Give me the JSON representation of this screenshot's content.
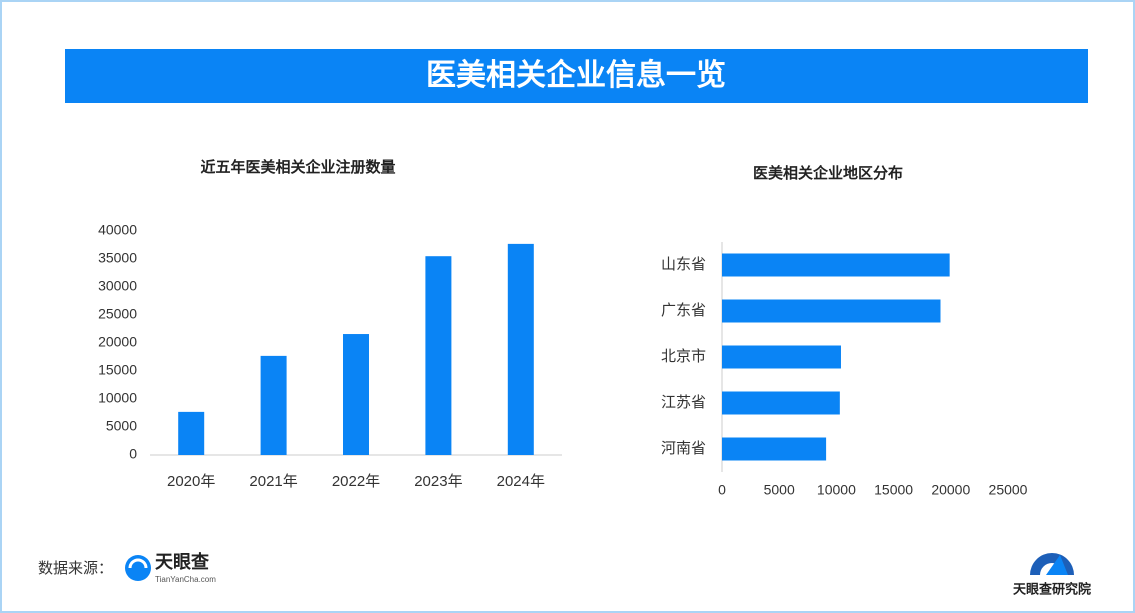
{
  "header": {
    "title": "医美相关企业信息一览"
  },
  "chart_data": [
    {
      "type": "bar",
      "title": "近五年医美相关企业注册数量",
      "categories": [
        "2020年",
        "2021年",
        "2022年",
        "2023年",
        "2024年"
      ],
      "values": [
        7700,
        17700,
        21600,
        35500,
        37700
      ],
      "color": "#0a84f5",
      "ylim": [
        0,
        40000
      ],
      "yticks": [
        0,
        5000,
        10000,
        15000,
        20000,
        25000,
        30000,
        35000,
        40000
      ]
    },
    {
      "type": "barh",
      "title": "医美相关企业地区分布",
      "categories": [
        "山东省",
        "广东省",
        "北京市",
        "江苏省",
        "河南省"
      ],
      "values": [
        19900,
        19100,
        10400,
        10300,
        9100
      ],
      "color": "#0a84f5",
      "xlim": [
        0,
        25000
      ],
      "xticks": [
        0,
        5000,
        10000,
        15000,
        20000,
        25000
      ]
    }
  ],
  "footer": {
    "source_label": "数据来源：",
    "logo_name": "天眼查",
    "logo_url": "TianYanCha.com",
    "institute": "天眼查研究院"
  }
}
